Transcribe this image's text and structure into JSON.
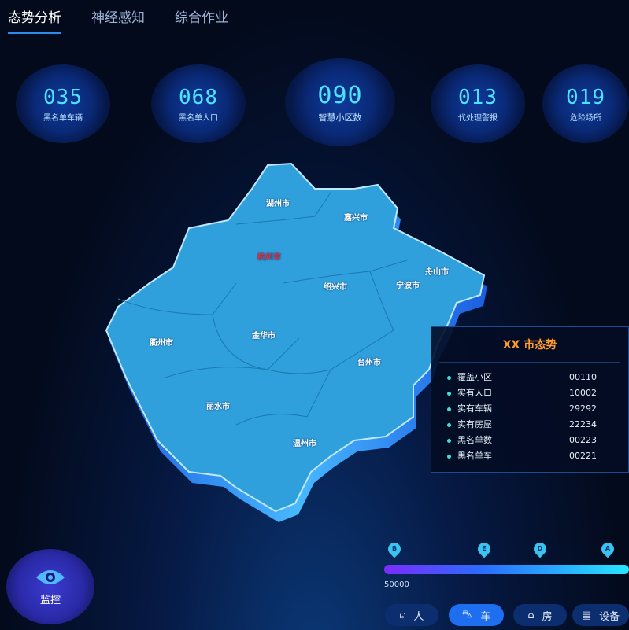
{
  "tabs": [
    {
      "label": "态势分析",
      "active": true
    },
    {
      "label": "神经感知"
    },
    {
      "label": "综合作业"
    }
  ],
  "kpis": [
    {
      "value": "035",
      "label": "黑名单车辆"
    },
    {
      "value": "068",
      "label": "黑名单人口"
    },
    {
      "value": "090",
      "label": "智慧小区数"
    },
    {
      "value": "013",
      "label": "代处理警报"
    },
    {
      "value": "019",
      "label": "危险场所"
    }
  ],
  "map": {
    "cities": [
      "湖州市",
      "嘉兴市",
      "杭州市",
      "舟山市",
      "绍兴市",
      "宁波市",
      "衢州市",
      "金华市",
      "台州市",
      "丽水市",
      "温州市"
    ],
    "highlight_city": "杭州市",
    "highlight_color": "#e0303a",
    "fill_color": "#2fa0dc"
  },
  "panel": {
    "title": "XX 市态势",
    "rows": [
      {
        "label": "覆盖小区",
        "value": "00110"
      },
      {
        "label": "实有人口",
        "value": "10002"
      },
      {
        "label": "实有车辆",
        "value": "29292"
      },
      {
        "label": "实有房屋",
        "value": "22234"
      },
      {
        "label": "黑名单数",
        "value": "00223"
      },
      {
        "label": "黑名单车",
        "value": "00221"
      }
    ]
  },
  "monitor": {
    "label": "监控",
    "icon": "eye-icon"
  },
  "legend": {
    "markers": [
      "B",
      "E",
      "D",
      "A"
    ],
    "min_label": "50000"
  },
  "filters": [
    {
      "label": "人",
      "icon": "person-icon"
    },
    {
      "label": "车",
      "icon": "car-icon",
      "active": true
    },
    {
      "label": "房",
      "icon": "house-icon"
    },
    {
      "label": "设备",
      "icon": "device-icon"
    }
  ]
}
